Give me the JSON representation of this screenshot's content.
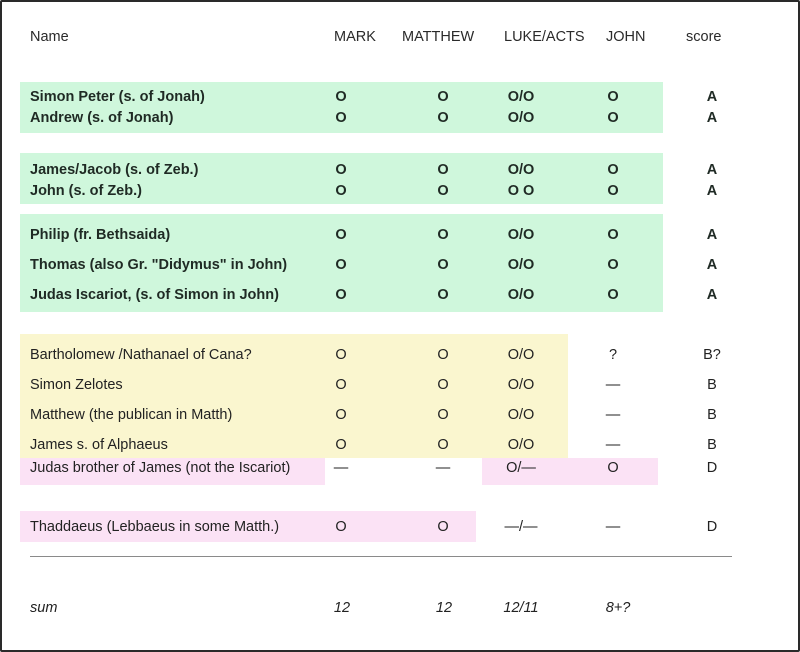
{
  "colors": {
    "green": "#cff7dc",
    "yellow": "#faf6cf",
    "pink": "#fbe2f5"
  },
  "headers": {
    "name": "Name",
    "mark": "MARK",
    "matthew": "MATTHEW",
    "luke": "LUKE/ACTS",
    "john": "JOHN",
    "score": "score"
  },
  "rows": [
    {
      "name": "Simon Peter (s. of Jonah)",
      "mark": "O",
      "matthew": "O",
      "luke": "O/O",
      "john": "O",
      "score": "A"
    },
    {
      "name": "Andrew (s. of Jonah)",
      "mark": "O",
      "matthew": "O",
      "luke": "O/O",
      "john": "O",
      "score": "A"
    },
    {
      "name": "James/Jacob (s. of Zeb.)",
      "mark": "O",
      "matthew": "O",
      "luke": "O/O",
      "john": "O",
      "score": "A"
    },
    {
      "name": "John (s. of Zeb.)",
      "mark": "O",
      "matthew": "O",
      "luke": "O O",
      "john": "O",
      "score": "A"
    },
    {
      "name": "Philip (fr. Bethsaida)",
      "mark": "O",
      "matthew": "O",
      "luke": "O/O",
      "john": "O",
      "score": "A"
    },
    {
      "name": "Thomas (also Gr. \"Didymus\" in John)",
      "mark": "O",
      "matthew": "O",
      "luke": "O/O",
      "john": "O",
      "score": "A"
    },
    {
      "name": "Judas Iscariot, (s. of Simon in John)",
      "mark": "O",
      "matthew": "O",
      "luke": "O/O",
      "john": "O",
      "score": "A"
    },
    {
      "name": "Bartholomew /Nathanael of Cana?",
      "mark": "O",
      "matthew": "O",
      "luke": "O/O",
      "john": "?",
      "score": "B?"
    },
    {
      "name": "Simon Zelotes",
      "mark": "O",
      "matthew": "O",
      "luke": "O/O",
      "john": "—",
      "score": "B"
    },
    {
      "name": "Matthew  (the publican in Matth)",
      "mark": "O",
      "matthew": "O",
      "luke": "O/O",
      "john": "—",
      "score": "B"
    },
    {
      "name": "James s. of Alphaeus",
      "mark": "O",
      "matthew": "O",
      "luke": "O/O",
      "john": "—",
      "score": "B"
    },
    {
      "name": "Judas brother of James (not the Iscariot)",
      "mark": "—",
      "matthew": "—",
      "luke": "O/—",
      "john": "O",
      "score": "D"
    },
    {
      "name": "Thaddaeus (Lebbaeus in some Matth.)",
      "mark": "O",
      "matthew": "O",
      "luke": "—/—",
      "john": "—",
      "score": "D"
    }
  ],
  "sum": {
    "label": "sum",
    "mark": "12",
    "matthew": "12",
    "luke": "12/11",
    "john": "8+?"
  }
}
